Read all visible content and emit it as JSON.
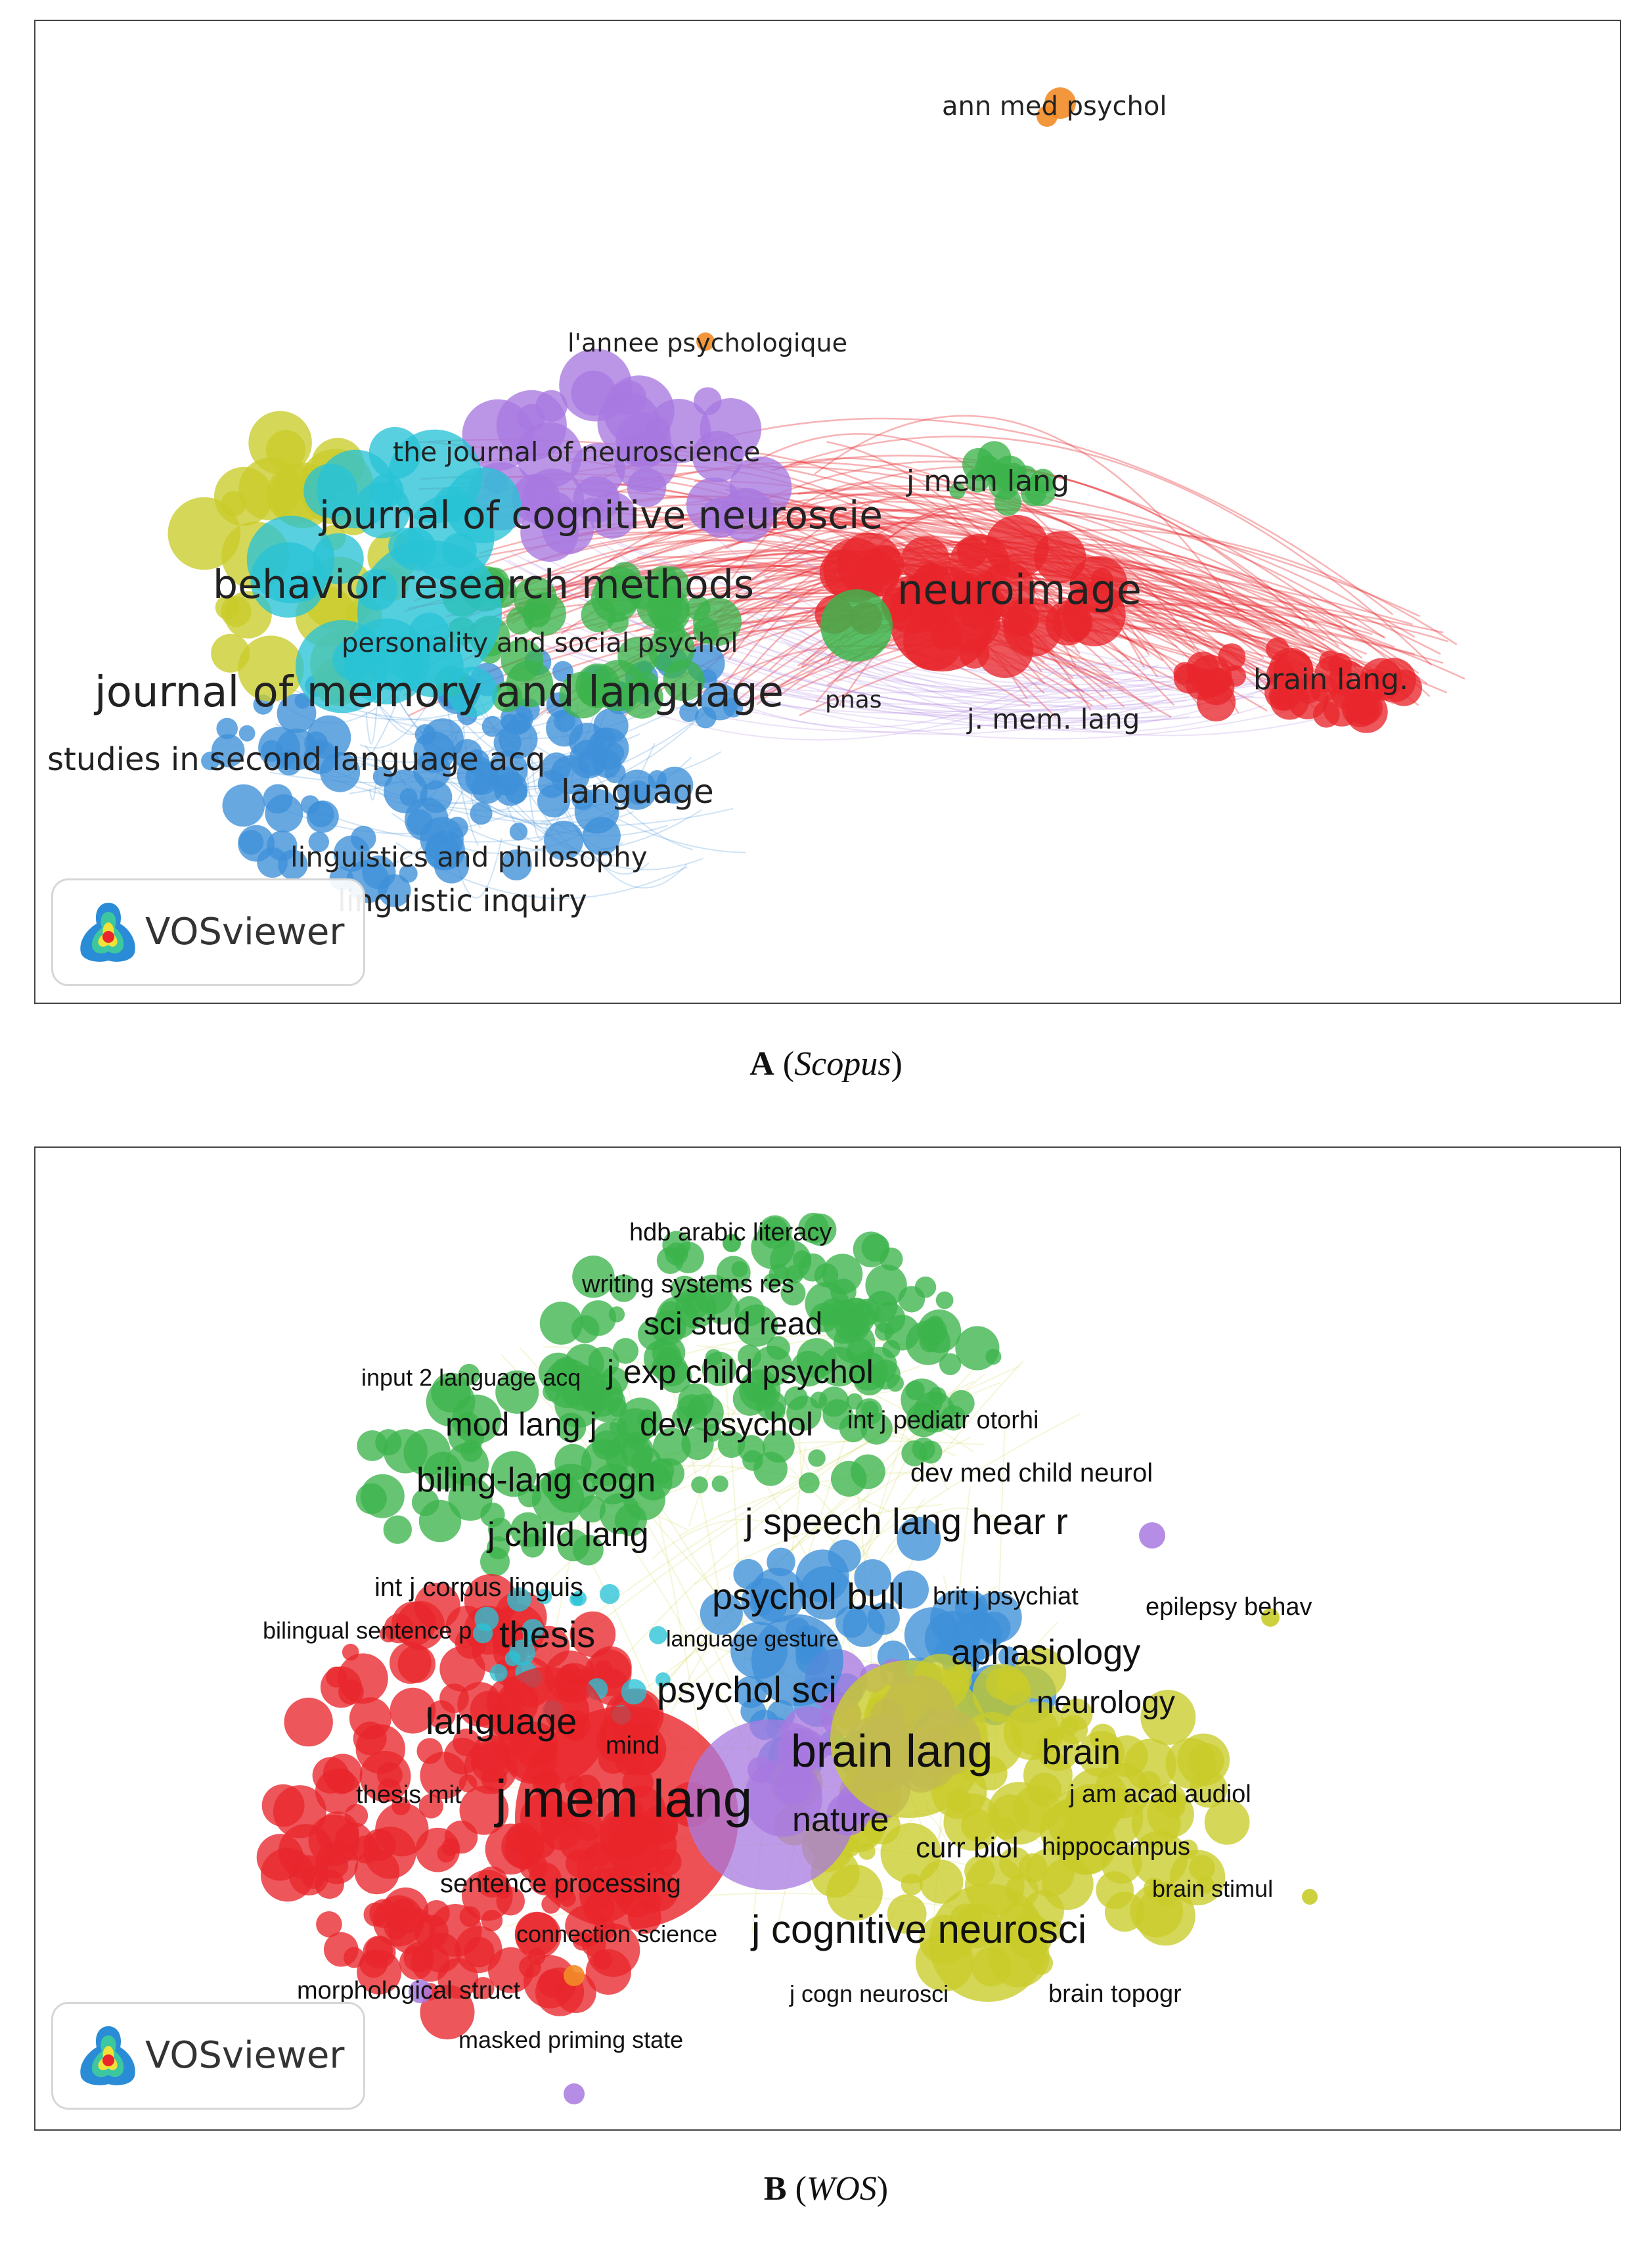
{
  "panel_a": {
    "caption_letter": "A",
    "caption_source": "Scopus",
    "logo_text": "VOSviewer",
    "labels": [
      "ann med psychol",
      "l'annee psychologique",
      "the journal of neuroscience",
      "j mem lang",
      "journal of cognitive neuroscie",
      "behavior research methods",
      "neuroimage",
      "personality and social psychol",
      "brain lang.",
      "journal of memory and language",
      "pnas",
      "j. mem. lang",
      "studies in second language acq",
      "language",
      "linguistics and philosophy",
      "linguistic inquiry"
    ]
  },
  "panel_b": {
    "caption_letter": "B",
    "caption_source": "WOS",
    "logo_text": "VOSviewer",
    "labels": [
      "hdb arabic literacy",
      "writing systems res",
      "sci stud read",
      "input 2 language acq",
      "j exp child psychol",
      "int j pediatr otorhi",
      "mod lang j",
      "dev psychol",
      "dev med child neurol",
      "biling-lang cogn",
      "j speech lang hear r",
      "j child lang",
      "int j corpus linguis",
      "psychol bull",
      "brit j psychiat",
      "epilepsy behav",
      "bilingual sentence p",
      "thesis",
      "language gesture",
      "aphasiology",
      "neurology",
      "psychol sci",
      "language",
      "mind",
      "brain lang",
      "brain",
      "thesis mit",
      "j mem lang",
      "j am acad audiol",
      "nature",
      "curr biol",
      "hippocampus",
      "sentence processing",
      "brain stimul",
      "connection science",
      "j cognitive neurosci",
      "morphological struct",
      "j cogn neurosci",
      "brain topogr",
      "masked priming state"
    ]
  },
  "cluster_colors": {
    "red": "#e8262b",
    "green": "#3cb44b",
    "blue": "#3e8fd8",
    "yellow": "#c9cc2a",
    "purple": "#a879e0",
    "cyan": "#29c3d6",
    "orange": "#f28c28"
  }
}
